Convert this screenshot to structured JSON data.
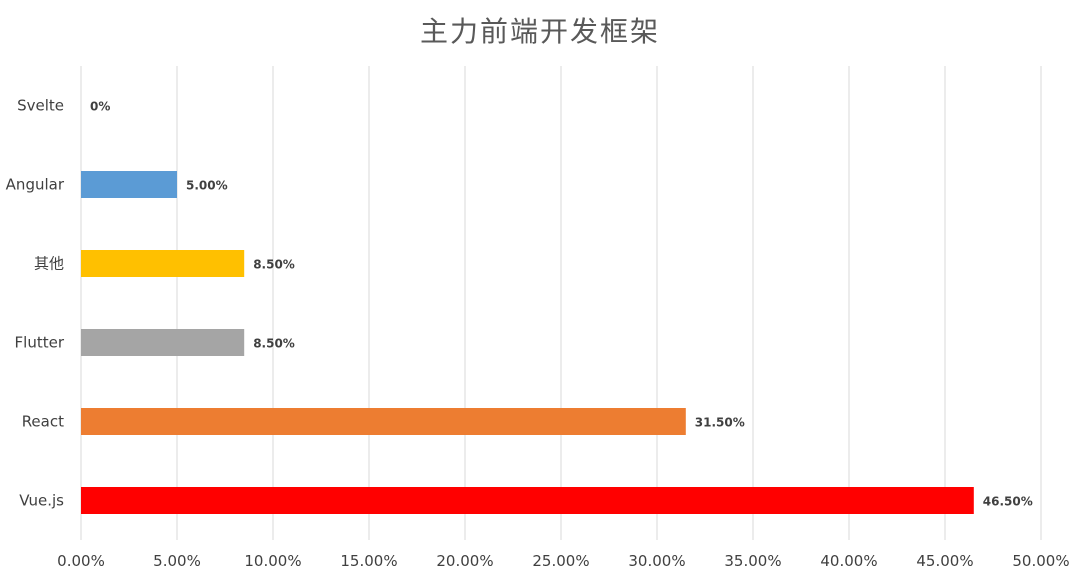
{
  "chart_data": {
    "type": "bar",
    "orientation": "horizontal",
    "title": "主力前端开发框架",
    "categories": [
      "Svelte",
      "Angular",
      "其他",
      "Flutter",
      "React",
      "Vue.js"
    ],
    "values": [
      0,
      5.0,
      8.5,
      8.5,
      31.5,
      46.5
    ],
    "value_labels": [
      "0%",
      "5.00%",
      "8.50%",
      "8.50%",
      "31.50%",
      "46.50%"
    ],
    "bar_colors": [
      "#5b9bd5",
      "#5b9bd5",
      "#ffc000",
      "#a5a5a5",
      "#ed7d31",
      "#ff0000"
    ],
    "xlim": [
      0,
      50
    ],
    "x_ticks": [
      0,
      5,
      10,
      15,
      20,
      25,
      30,
      35,
      40,
      45,
      50
    ],
    "x_tick_labels": [
      "0.00%",
      "5.00%",
      "10.00%",
      "15.00%",
      "20.00%",
      "25.00%",
      "30.00%",
      "35.00%",
      "40.00%",
      "45.00%",
      "50.00%"
    ],
    "grid": true,
    "legend": "none"
  }
}
